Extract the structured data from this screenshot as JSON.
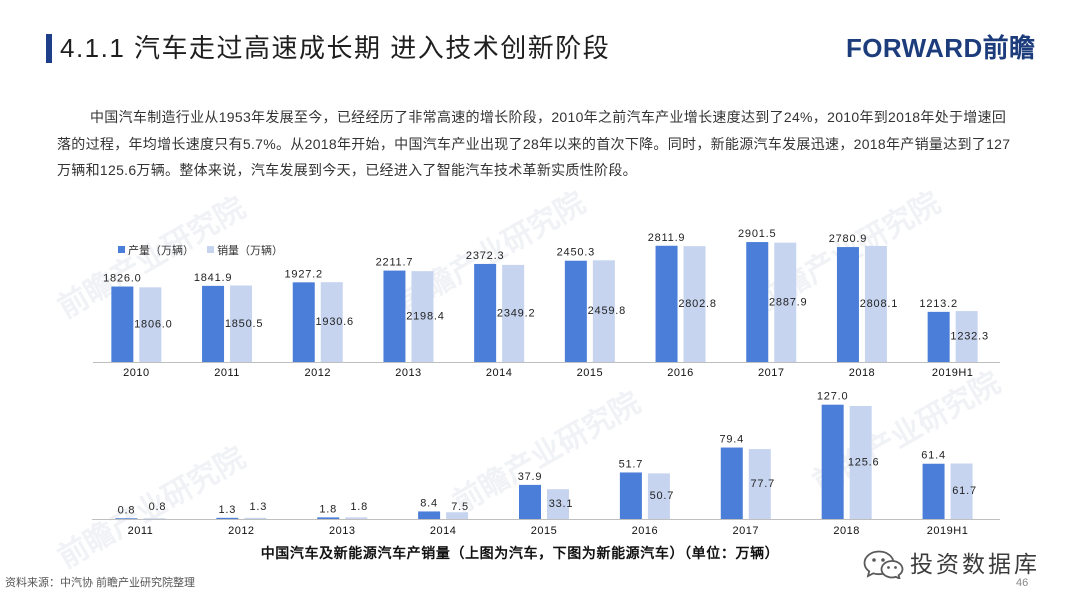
{
  "theme": {
    "accent": "#1d3f8a",
    "brand_color": "#1d3c7c"
  },
  "header": {
    "section_title": "4.1.1 汽车走过高速成长期 进入技术创新阶段",
    "brand_logo": "FORWARD前瞻"
  },
  "summary": {
    "paragraph": "中国汽车制造行业从1953年发展至今，已经经历了非常高速的增长阶段，2010年之前汽车产业增长速度达到了24%，2010年到2018年处于增速回落的过程，年均增长速度只有5.7%。从2018年开始，中国汽车产业出现了28年以来的首次下降。同时，新能源汽车发展迅速，2018年产销量达到了127万辆和125.6万辆。整体来说，汽车发展到今天，已经进入了智能汽车技术革新实质性阶段。"
  },
  "chart_data": [
    {
      "type": "bar",
      "categories": [
        "2010",
        "2011",
        "2012",
        "2013",
        "2014",
        "2015",
        "2016",
        "2017",
        "2018",
        "2019H1"
      ],
      "series": [
        {
          "name": "产量（万辆）",
          "color": "#4a7ed8",
          "values": [
            1826.0,
            1841.9,
            1927.2,
            2211.7,
            2372.3,
            2450.3,
            2811.9,
            2901.5,
            2780.9,
            1213.2
          ]
        },
        {
          "name": "销量（万辆）",
          "color": "#c6d4f0",
          "values": [
            1806.0,
            1850.5,
            1930.6,
            2198.4,
            2349.2,
            2459.8,
            2802.8,
            2887.9,
            2808.1,
            1232.3
          ]
        }
      ],
      "ylim": [
        0,
        3000
      ],
      "y_axis_visible": false,
      "grid": false,
      "legend": "top-left",
      "data_labels": true
    },
    {
      "type": "bar",
      "categories": [
        "2011",
        "2012",
        "2013",
        "2014",
        "2015",
        "2016",
        "2017",
        "2018",
        "2019H1"
      ],
      "series": [
        {
          "color": "#4a7ed8",
          "values": [
            0.8,
            1.3,
            1.8,
            8.4,
            37.9,
            51.7,
            79.4,
            127.0,
            61.4
          ]
        },
        {
          "color": "#c6d4f0",
          "values": [
            0.8,
            1.3,
            1.8,
            7.5,
            33.1,
            50.7,
            77.7,
            125.6,
            61.7
          ]
        }
      ],
      "ylim": [
        0,
        140
      ],
      "y_axis_visible": false,
      "grid": false,
      "data_labels": true
    }
  ],
  "caption": "中国汽车及新能源汽车产销量（上图为汽车，下图为新能源汽车）（单位：万辆）",
  "footer": {
    "source": "资料来源：中汽协 前瞻产业研究院整理",
    "page_number": "46",
    "wechat_account": "投资数据库"
  },
  "watermark": {
    "text": "前瞻产业研究院"
  }
}
